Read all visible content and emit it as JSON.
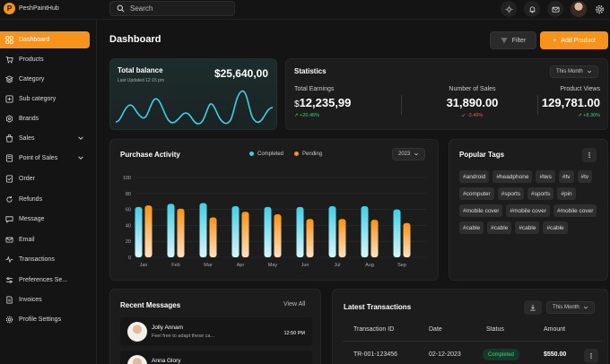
{
  "app": {
    "name": "PeshPaintHub",
    "logo_letter": "P"
  },
  "search": {
    "placeholder": "Search"
  },
  "colors": {
    "accent": "#f7931a",
    "completed": "#3fd0e8",
    "pending": "#f7931a",
    "up": "#3bd37a",
    "down": "#f05a5a"
  },
  "header_icons": [
    "sun-icon",
    "bell-icon",
    "mail-icon",
    "gear-icon"
  ],
  "sidebar": {
    "items": [
      {
        "label": "Dashboard",
        "icon": "grid-icon",
        "active": true
      },
      {
        "label": "Products",
        "icon": "cart-icon"
      },
      {
        "label": "Category",
        "icon": "category-icon"
      },
      {
        "label": "Sub category",
        "icon": "subcategory-icon"
      },
      {
        "label": "Brands",
        "icon": "brands-icon"
      },
      {
        "label": "Sales",
        "icon": "sales-icon",
        "expandable": true
      },
      {
        "label": "Point of Sales",
        "icon": "pos-icon",
        "expandable": true
      },
      {
        "label": "Order",
        "icon": "order-icon"
      },
      {
        "label": "Refunds",
        "icon": "refund-icon"
      },
      {
        "label": "Message",
        "icon": "message-icon"
      },
      {
        "label": "Email",
        "icon": "email-icon"
      },
      {
        "label": "Transactions",
        "icon": "pulse-icon"
      },
      {
        "label": "Preferences Se...",
        "icon": "preferences-icon"
      },
      {
        "label": "Invoices",
        "icon": "invoice-icon"
      },
      {
        "label": "Profile Settings",
        "icon": "profile-icon"
      }
    ]
  },
  "main": {
    "title": "Dashboard",
    "filter_label": "Filter",
    "add_label": "Add Product"
  },
  "balance": {
    "title": "Total balance",
    "subtitle": "Last Updated 12:15 pm",
    "value": "$25,640,00"
  },
  "statistics": {
    "title": "Statistics",
    "period": "This Month",
    "items": [
      {
        "label": "Total Earnings",
        "currency": "$",
        "value": "12,235,99",
        "change": "↗ +20.46%",
        "direction": "up"
      },
      {
        "label": "Number of Sales",
        "currency": "",
        "value": "31,890.00",
        "change": "↙ -3.46%",
        "direction": "down"
      },
      {
        "label": "Product Views",
        "currency": "",
        "value": "129,781.00",
        "change": "↗ +8.30%",
        "direction": "up"
      }
    ]
  },
  "activity": {
    "title": "Purchase Activity",
    "year": "2023",
    "legend_completed": "Completed",
    "legend_pending": "Pending"
  },
  "chart_data": {
    "type": "bar",
    "title": "Purchase Activity",
    "categories": [
      "Jan",
      "Feb",
      "Mar",
      "Apr",
      "May",
      "Jun",
      "Jul",
      "Aug",
      "Sep"
    ],
    "series": [
      {
        "name": "Completed",
        "values": [
          63,
          67,
          68,
          64,
          63,
          63,
          64,
          64,
          60
        ]
      },
      {
        "name": "Pending",
        "values": [
          65,
          61,
          50,
          57,
          54,
          48,
          48,
          47,
          43
        ]
      }
    ],
    "y_ticks": [
      "100",
      "80",
      "60",
      "40",
      "20",
      "0"
    ],
    "ylim": [
      0,
      100
    ],
    "grid": true,
    "legend": "top-right"
  },
  "tags": {
    "title": "Popular Tags",
    "items": [
      "#android",
      "#headphone",
      "#tws",
      "#tv",
      "#tv",
      "#computer",
      "#sports",
      "#sports",
      "#pin",
      "#mobile cover",
      "#mobile cover",
      "#mobile cover",
      "#cable",
      "#cable",
      "#cable",
      "#cable"
    ]
  },
  "messages": {
    "title": "Recent Messages",
    "view_all": "View All",
    "items": [
      {
        "name": "Jolly Annam",
        "text": "Feel free to adapt these ca...",
        "time": "12:50 PM"
      },
      {
        "name": "Anna Glory",
        "text": "",
        "time": ""
      }
    ]
  },
  "transactions": {
    "title": "Latest Transactions",
    "period": "This Month",
    "columns": [
      "Transaction ID",
      "Date",
      "Status",
      "Amount"
    ],
    "rows": [
      {
        "id": "TR-001-123456",
        "date": "02-12-2023",
        "status": "Completed",
        "amount": "$550.00"
      }
    ]
  }
}
